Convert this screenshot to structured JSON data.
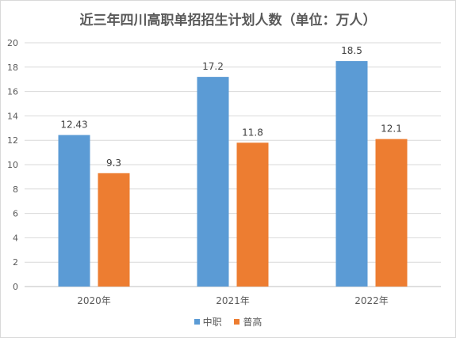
{
  "chart_data": {
    "type": "bar",
    "title": "近三年四川高职单招招生计划人数（单位：万人）",
    "categories": [
      "2020年",
      "2021年",
      "2022年"
    ],
    "series": [
      {
        "name": "中职",
        "values": [
          12.43,
          17.2,
          18.5
        ],
        "color": "#5b9bd5"
      },
      {
        "name": "普高",
        "values": [
          9.3,
          11.8,
          12.1
        ],
        "color": "#ed7d31"
      }
    ],
    "data_labels": [
      [
        "12.43",
        "17.2",
        "18.5"
      ],
      [
        "9.3",
        "11.8",
        "12.1"
      ]
    ],
    "ylim": [
      0,
      20
    ],
    "yticks": [
      0,
      2,
      4,
      6,
      8,
      10,
      12,
      14,
      16,
      18,
      20
    ],
    "grid": true,
    "legend_position": "bottom"
  }
}
